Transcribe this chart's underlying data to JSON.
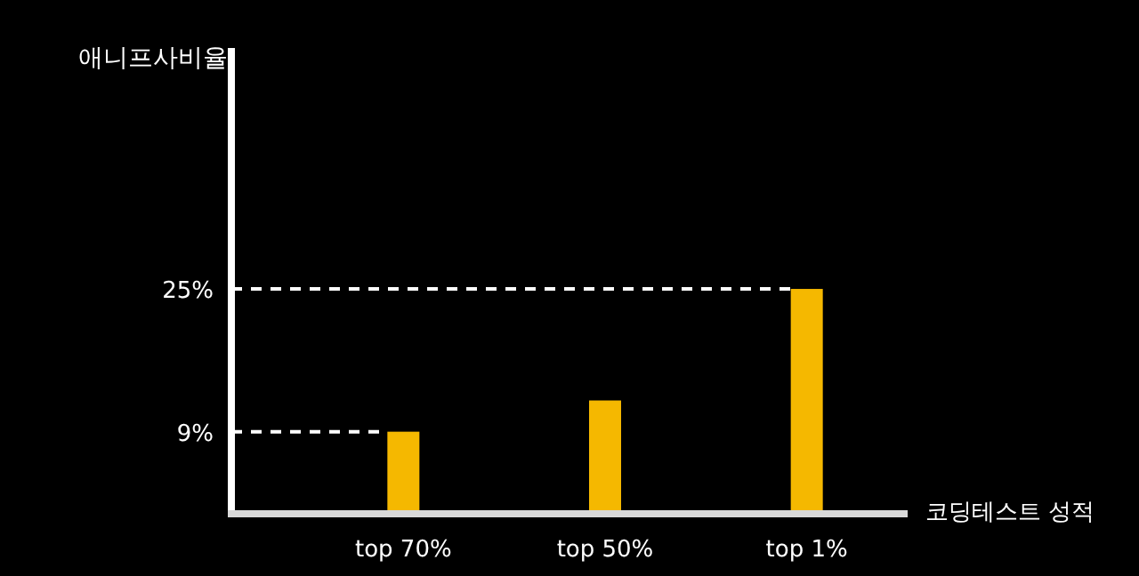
{
  "chart_data": {
    "type": "bar",
    "xlabel": "코딩테스트 성적",
    "ylabel": "애니프사비율",
    "categories": [
      "top 70%",
      "top 50%",
      "top 1%"
    ],
    "values": [
      9,
      12.5,
      25
    ],
    "color": "#f5b800",
    "ylim": [
      0,
      52
    ],
    "yticks": [
      {
        "value": 9,
        "label": "9%"
      },
      {
        "value": 25,
        "label": "25%"
      }
    ],
    "ref_lines": [
      {
        "axis": "y",
        "value": 9,
        "color": "#ffffff",
        "line_style": "dashed"
      },
      {
        "axis": "y",
        "value": 25,
        "color": "#ffffff",
        "line_style": "dashed"
      }
    ]
  }
}
